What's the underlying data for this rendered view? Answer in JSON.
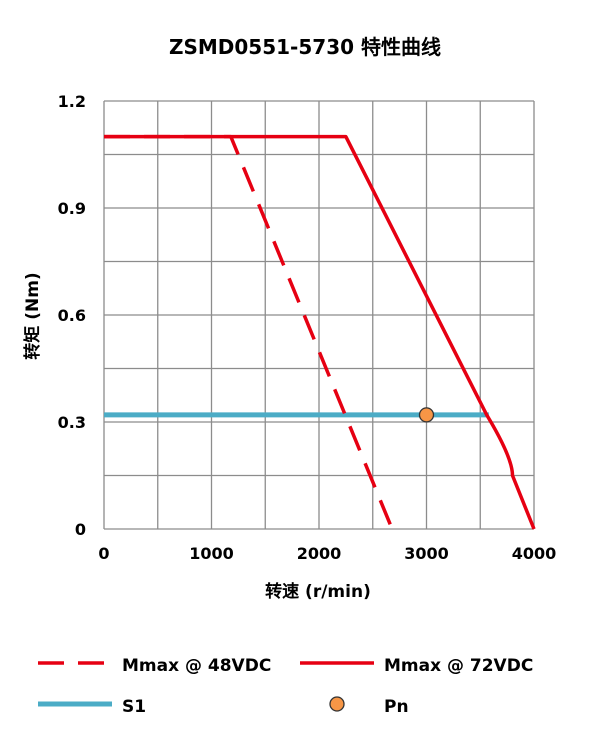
{
  "chart_data": {
    "type": "line",
    "title": "ZSMD0551-5730 特性曲线",
    "xlabel": "转速 (r/min)",
    "ylabel": "转矩 (Nm)",
    "xlim": [
      0,
      4000
    ],
    "ylim": [
      0,
      1.2
    ],
    "xticks": [
      0,
      1000,
      2000,
      3000,
      4000
    ],
    "yticks": [
      0,
      0.3,
      0.6,
      0.9,
      1.2
    ],
    "ytick_labels": [
      "0",
      "0.3",
      "0.6",
      "0.9",
      "1.2"
    ],
    "grid": true,
    "legend_position": "bottom",
    "series": [
      {
        "name": "Mmax @ 48VDC",
        "style": "dashed",
        "color": "#e60012",
        "x": [
          0,
          1180,
          2680
        ],
        "y": [
          1.1,
          1.1,
          0
        ]
      },
      {
        "name": "Mmax @ 72VDC",
        "style": "solid",
        "color": "#e60012",
        "x": [
          0,
          2250,
          3560,
          3800,
          4000
        ],
        "y": [
          1.1,
          1.1,
          0.32,
          0.15,
          0
        ]
      },
      {
        "name": "S1",
        "style": "solid",
        "color": "#4bacc6",
        "x": [
          0,
          3580
        ],
        "y": [
          0.32,
          0.32
        ]
      },
      {
        "name": "Pn",
        "style": "marker",
        "color": "#f79646",
        "x": [
          3000
        ],
        "y": [
          0.32
        ]
      }
    ]
  }
}
